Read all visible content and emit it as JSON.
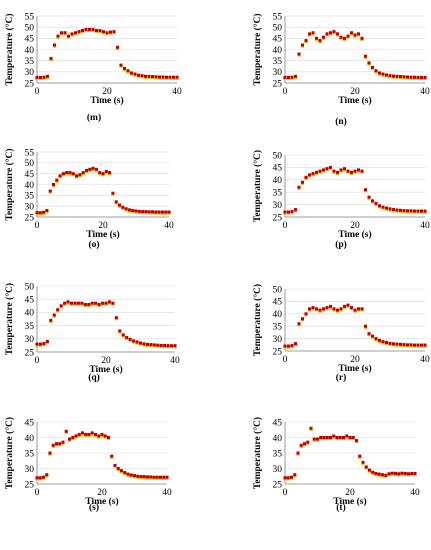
{
  "chart_data": [
    {
      "id": "m",
      "caption": "(m)",
      "type": "scatter",
      "xlabel": "Time (s)",
      "ylabel": "Temperature (°C)",
      "xlim": [
        0,
        40
      ],
      "ylim": [
        25,
        55
      ],
      "xticks": [
        0,
        20,
        40
      ],
      "yticks": [
        25,
        30,
        35,
        40,
        45,
        50,
        55
      ],
      "x": [
        0,
        1,
        2,
        3,
        4,
        5,
        6,
        7,
        8,
        9,
        10,
        11,
        12,
        13,
        14,
        15,
        16,
        17,
        18,
        19,
        20,
        21,
        22,
        23,
        24,
        25,
        26,
        27,
        28,
        29,
        30,
        31,
        32,
        33,
        34,
        35,
        36,
        37,
        38,
        39,
        40
      ],
      "y": [
        27.5,
        27.5,
        27.6,
        28,
        36,
        42,
        46,
        47.5,
        47.5,
        46,
        47,
        47.5,
        48,
        48.5,
        49,
        49,
        49,
        48.5,
        48.5,
        48,
        47.5,
        47.8,
        48,
        41,
        33,
        31.5,
        30.5,
        29.5,
        29,
        28.5,
        28.3,
        28,
        28,
        27.9,
        27.8,
        27.7,
        27.7,
        27.6,
        27.6,
        27.6,
        27.6
      ]
    },
    {
      "id": "n",
      "caption": "(n)",
      "type": "scatter",
      "xlabel": "Time (s)",
      "ylabel": "Temperature (°C)",
      "xlim": [
        0,
        40
      ],
      "ylim": [
        25,
        55
      ],
      "xticks": [
        0,
        20,
        40
      ],
      "yticks": [
        25,
        30,
        35,
        40,
        45,
        50,
        55
      ],
      "x": [
        0,
        1,
        2,
        3,
        4,
        5,
        6,
        7,
        8,
        9,
        10,
        11,
        12,
        13,
        14,
        15,
        16,
        17,
        18,
        19,
        20,
        21,
        22,
        23,
        24,
        25,
        26,
        27,
        28,
        29,
        30,
        31,
        32,
        33,
        34,
        35,
        36,
        37,
        38,
        39,
        40
      ],
      "y": [
        27.5,
        27.5,
        27.6,
        28,
        38,
        42,
        44,
        47,
        47.5,
        45,
        44,
        45.5,
        47,
        47.5,
        48,
        47,
        45.5,
        45,
        46,
        47.5,
        46.5,
        47,
        45,
        37,
        34,
        32,
        30.5,
        29.5,
        29,
        28.6,
        28.3,
        28.1,
        28,
        27.9,
        27.8,
        27.7,
        27.6,
        27.6,
        27.5,
        27.5,
        27.5
      ]
    },
    {
      "id": "o",
      "caption": "(o)",
      "type": "scatter",
      "xlabel": "Time (s)",
      "ylabel": "Temperature (°C)",
      "xlim": [
        0,
        40
      ],
      "ylim": [
        25,
        55
      ],
      "xticks": [
        0,
        20,
        40
      ],
      "yticks": [
        25,
        30,
        35,
        40,
        45,
        50,
        55
      ],
      "x": [
        0,
        1,
        2,
        3,
        4,
        5,
        6,
        7,
        8,
        9,
        10,
        11,
        12,
        13,
        14,
        15,
        16,
        17,
        18,
        19,
        20,
        21,
        22,
        23,
        24,
        25,
        26,
        27,
        28,
        29,
        30,
        31,
        32,
        33,
        34,
        35,
        36,
        37,
        38,
        39,
        40
      ],
      "y": [
        27,
        27,
        27.2,
        28,
        37,
        40,
        42,
        44,
        45,
        45.5,
        45.5,
        45,
        44,
        44.5,
        45.5,
        46.5,
        47,
        47.5,
        47,
        45.5,
        45,
        46,
        45.5,
        36,
        32,
        30.5,
        29.5,
        28.8,
        28.3,
        28,
        27.8,
        27.6,
        27.5,
        27.5,
        27.4,
        27.4,
        27.3,
        27.3,
        27.3,
        27.3,
        27.3
      ]
    },
    {
      "id": "p",
      "caption": "(p)",
      "type": "scatter",
      "xlabel": "Time (s)",
      "ylabel": "Temperature (°C)",
      "xlim": [
        0,
        40
      ],
      "ylim": [
        25,
        50
      ],
      "xticks": [
        0,
        20,
        40
      ],
      "yticks": [
        25,
        30,
        35,
        40,
        45,
        50
      ],
      "x": [
        0,
        1,
        2,
        3,
        4,
        5,
        6,
        7,
        8,
        9,
        10,
        11,
        12,
        13,
        14,
        15,
        16,
        17,
        18,
        19,
        20,
        21,
        22,
        23,
        24,
        25,
        26,
        27,
        28,
        29,
        30,
        31,
        32,
        33,
        34,
        35,
        36,
        37,
        38,
        39,
        40
      ],
      "y": [
        27,
        27,
        27.2,
        28,
        37,
        39,
        41,
        42,
        42.5,
        43,
        43.5,
        44,
        44.5,
        45,
        43.5,
        43,
        44,
        44.5,
        43.5,
        43,
        43.5,
        44,
        43.5,
        36,
        33,
        31.5,
        30.5,
        29.5,
        29,
        28.6,
        28.3,
        28,
        27.8,
        27.7,
        27.6,
        27.5,
        27.5,
        27.4,
        27.4,
        27.4,
        27.4
      ]
    },
    {
      "id": "q",
      "caption": "(q)",
      "type": "scatter",
      "xlabel": "Time (s)",
      "ylabel": "Temperature (°C)",
      "xlim": [
        0,
        40
      ],
      "ylim": [
        25,
        50
      ],
      "xticks": [
        0,
        20,
        40
      ],
      "yticks": [
        25,
        30,
        35,
        40,
        45,
        50
      ],
      "x": [
        0,
        1,
        2,
        3,
        4,
        5,
        6,
        7,
        8,
        9,
        10,
        11,
        12,
        13,
        14,
        15,
        16,
        17,
        18,
        19,
        20,
        21,
        22,
        23,
        24,
        25,
        26,
        27,
        28,
        29,
        30,
        31,
        32,
        33,
        34,
        35,
        36,
        37,
        38,
        39,
        40
      ],
      "y": [
        28,
        28,
        28.2,
        29,
        37,
        39,
        41,
        42.5,
        43.5,
        44,
        43.5,
        43.5,
        43.5,
        43.5,
        43,
        43,
        43.5,
        43.5,
        43,
        43.5,
        43.5,
        44,
        43.5,
        38,
        33,
        31.5,
        30.5,
        29.8,
        29.2,
        28.8,
        28.4,
        28.1,
        27.9,
        27.8,
        27.7,
        27.6,
        27.5,
        27.5,
        27.4,
        27.4,
        27.4
      ]
    },
    {
      "id": "r",
      "caption": "(r)",
      "type": "scatter",
      "xlabel": "Time (s)",
      "ylabel": "Temperature (°C)",
      "xlim": [
        0,
        40
      ],
      "ylim": [
        25,
        50
      ],
      "xticks": [
        0,
        20,
        40
      ],
      "yticks": [
        25,
        30,
        35,
        40,
        45,
        50
      ],
      "x": [
        0,
        1,
        2,
        3,
        4,
        5,
        6,
        7,
        8,
        9,
        10,
        11,
        12,
        13,
        14,
        15,
        16,
        17,
        18,
        19,
        20,
        21,
        22,
        23,
        24,
        25,
        26,
        27,
        28,
        29,
        30,
        31,
        32,
        33,
        34,
        35,
        36,
        37,
        38,
        39,
        40
      ],
      "y": [
        27,
        27,
        27.2,
        28,
        36,
        38,
        40,
        42,
        42.5,
        42,
        41.5,
        42,
        42.5,
        43,
        42,
        41.5,
        42,
        43,
        43.5,
        42.5,
        41.5,
        42,
        42,
        35,
        32,
        31,
        30,
        29.3,
        28.8,
        28.4,
        28.1,
        27.9,
        27.8,
        27.7,
        27.6,
        27.5,
        27.5,
        27.4,
        27.4,
        27.4,
        27.4
      ]
    },
    {
      "id": "s",
      "caption": "(s)",
      "type": "scatter",
      "xlabel": "Time (s)",
      "ylabel": "Temperature (°C)",
      "xlim": [
        0,
        40
      ],
      "ylim": [
        25,
        45
      ],
      "xticks": [
        0,
        20,
        40
      ],
      "yticks": [
        25,
        30,
        35,
        40,
        45
      ],
      "x": [
        0,
        1,
        2,
        3,
        4,
        5,
        6,
        7,
        8,
        9,
        10,
        11,
        12,
        13,
        14,
        15,
        16,
        17,
        18,
        19,
        20,
        21,
        22,
        23,
        24,
        25,
        26,
        27,
        28,
        29,
        30,
        31,
        32,
        33,
        34,
        35,
        36,
        37,
        38,
        39,
        40
      ],
      "y": [
        27,
        27,
        27.2,
        28,
        35,
        37.5,
        38,
        38,
        38.5,
        42,
        39.5,
        40,
        40.5,
        41,
        41.5,
        41,
        41,
        41.5,
        41,
        40.5,
        41,
        40.5,
        40,
        34,
        31,
        30,
        29.3,
        28.7,
        28.2,
        27.9,
        27.7,
        27.5,
        27.4,
        27.4,
        27.3,
        27.3,
        27.2,
        27.2,
        27.2,
        27.2,
        27.2
      ]
    },
    {
      "id": "t",
      "caption": "(t)",
      "type": "scatter",
      "xlabel": "Time (s)",
      "ylabel": "Temperature (°C)",
      "xlim": [
        0,
        40
      ],
      "ylim": [
        25,
        45
      ],
      "xticks": [
        0,
        20,
        40
      ],
      "yticks": [
        25,
        30,
        35,
        40,
        45
      ],
      "x": [
        0,
        1,
        2,
        3,
        4,
        5,
        6,
        7,
        8,
        9,
        10,
        11,
        12,
        13,
        14,
        15,
        16,
        17,
        18,
        19,
        20,
        21,
        22,
        23,
        24,
        25,
        26,
        27,
        28,
        29,
        30,
        31,
        32,
        33,
        34,
        35,
        36,
        37,
        38,
        39,
        40
      ],
      "y": [
        27,
        27,
        27.2,
        28,
        35,
        37.5,
        38,
        38.5,
        43,
        39.5,
        39.5,
        40,
        40,
        40,
        40,
        40.5,
        40,
        40,
        40,
        40.5,
        40,
        40,
        39,
        34,
        32,
        30.5,
        29.5,
        28.8,
        28.4,
        28.2,
        28,
        27.8,
        28.3,
        28.5,
        28.4,
        28.3,
        28.5,
        28.4,
        28.3,
        28.4,
        28.4
      ]
    }
  ],
  "colors": {
    "marker": "#c00000",
    "marker_alt": "#ffb000",
    "axis": "#7f7f7f",
    "grid": "#d9d9d9"
  }
}
